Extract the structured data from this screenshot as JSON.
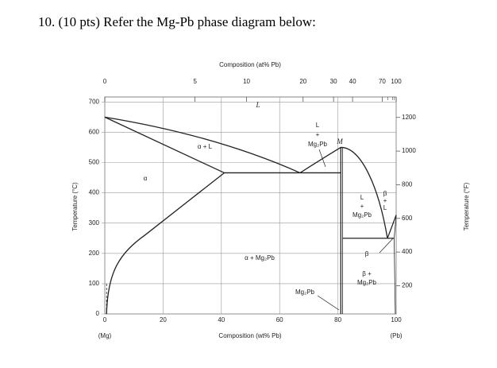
{
  "question": "10. (10 pts) Refer the Mg-Pb phase diagram below:",
  "diagram": {
    "top_axis": {
      "title": "Composition (at% Pb)",
      "ticks": [
        0,
        5,
        10,
        20,
        30,
        40,
        70,
        100
      ]
    },
    "bottom_axis": {
      "title": "Composition (wt% Pb)",
      "ticks": [
        0,
        20,
        40,
        60,
        80,
        100
      ],
      "end_labels": [
        "(Mg)",
        "(Pb)"
      ]
    },
    "left_axis": {
      "title": "Temperature (°C)",
      "ticks": [
        0,
        100,
        200,
        300,
        400,
        500,
        600,
        700
      ]
    },
    "right_axis": {
      "title": "Temperature (°F)",
      "ticks": [
        200,
        400,
        600,
        800,
        1000,
        1200
      ]
    },
    "regions": [
      {
        "lines": [
          "L"
        ]
      },
      {
        "lines": [
          "α + L"
        ]
      },
      {
        "lines": [
          "α"
        ]
      },
      {
        "lines": [
          "L",
          "+",
          "Mg₂Pb"
        ]
      },
      {
        "lines": [
          "M"
        ]
      },
      {
        "lines": [
          "α + Mg₂Pb"
        ]
      },
      {
        "lines": [
          "Mg₂Pb"
        ]
      },
      {
        "lines": [
          "L",
          "+",
          "Mg₂Pb"
        ]
      },
      {
        "lines": [
          "β",
          "+",
          "L"
        ]
      },
      {
        "lines": [
          "β"
        ]
      },
      {
        "lines": [
          "β +",
          "Mg₂Pb"
        ]
      }
    ]
  }
}
